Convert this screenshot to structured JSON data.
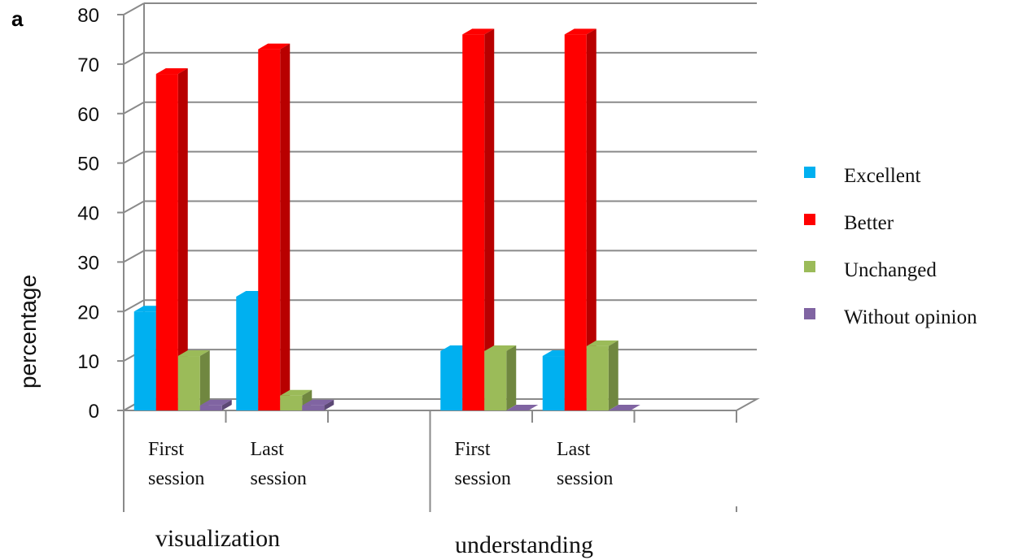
{
  "chart_data": {
    "type": "bar",
    "panel_label": "a",
    "ylabel": "percentage",
    "ylim": [
      0,
      80
    ],
    "yticks": [
      0,
      10,
      20,
      30,
      40,
      50,
      60,
      70,
      80
    ],
    "grid": true,
    "legend_position": "right",
    "groups": [
      {
        "label": "visualization",
        "categories": [
          [
            "First",
            "session"
          ],
          [
            "Last",
            "session"
          ]
        ]
      },
      {
        "label": "understanding",
        "categories": [
          [
            "First",
            "session"
          ],
          [
            "Last",
            "session"
          ]
        ]
      }
    ],
    "series": [
      {
        "name": "Excellent",
        "color": "#00B0F0",
        "values": [
          20,
          23,
          12,
          11
        ]
      },
      {
        "name": "Better",
        "color": "#FF0000",
        "values": [
          68,
          73,
          76,
          76
        ]
      },
      {
        "name": "Unchanged",
        "color": "#9BBB59",
        "values": [
          11,
          3,
          12,
          13
        ]
      },
      {
        "name": "Without opinion",
        "color": "#8064A2",
        "values": [
          1,
          1,
          0,
          0
        ]
      }
    ]
  }
}
